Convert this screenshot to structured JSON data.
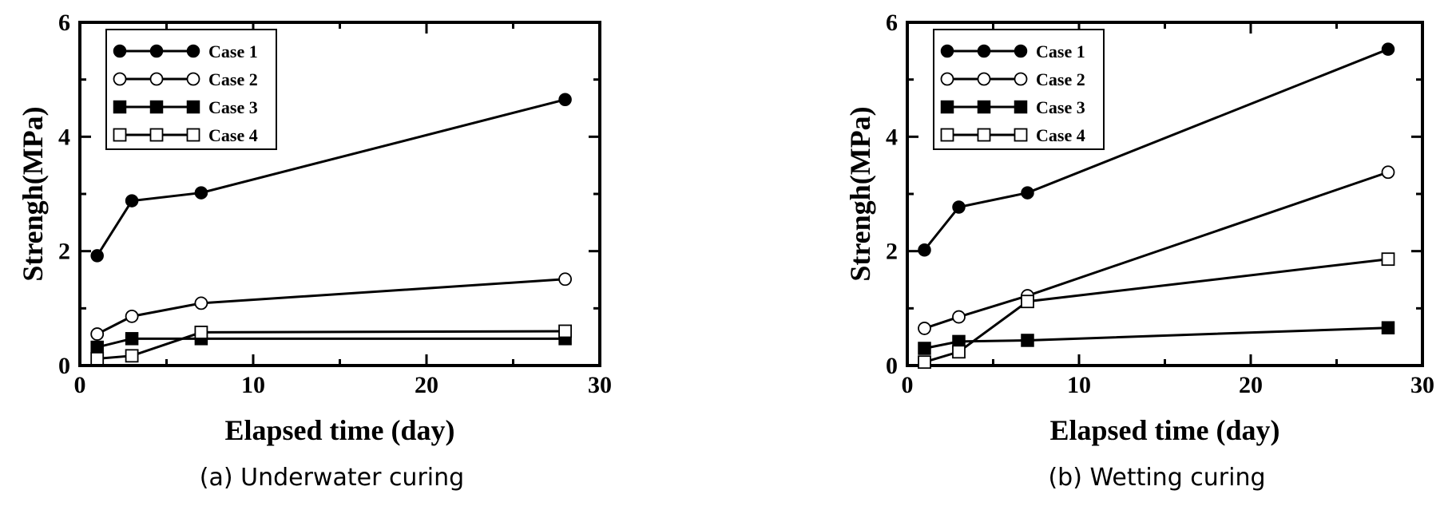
{
  "chart_data": [
    {
      "type": "line",
      "caption": "(a) Underwater curing",
      "xlabel": "Elapsed time (day)",
      "ylabel": "Strengh(MPa)",
      "xlim": [
        0,
        30
      ],
      "ylim": [
        0,
        6
      ],
      "xticks": [
        0,
        10,
        20,
        30
      ],
      "yticks": [
        0,
        2,
        4,
        6
      ],
      "x": [
        1,
        3,
        7,
        28
      ],
      "legend_position": "top-left",
      "series": [
        {
          "name": "Case 1",
          "marker": "filled-circle",
          "values": [
            1.92,
            2.88,
            3.02,
            4.65
          ]
        },
        {
          "name": "Case 2",
          "marker": "open-circle",
          "values": [
            0.55,
            0.86,
            1.09,
            1.51
          ]
        },
        {
          "name": "Case 3",
          "marker": "filled-square",
          "values": [
            0.32,
            0.47,
            0.47,
            0.47
          ]
        },
        {
          "name": "Case 4",
          "marker": "open-square",
          "values": [
            0.12,
            0.17,
            0.58,
            0.6
          ]
        }
      ]
    },
    {
      "type": "line",
      "caption": "(b) Wetting curing",
      "xlabel": "Elapsed time (day)",
      "ylabel": "Strengh(MPa)",
      "xlim": [
        0,
        30
      ],
      "ylim": [
        0,
        6
      ],
      "xticks": [
        0,
        10,
        20,
        30
      ],
      "yticks": [
        0,
        2,
        4,
        6
      ],
      "x": [
        1,
        3,
        7,
        28
      ],
      "legend_position": "top-left",
      "series": [
        {
          "name": "Case 1",
          "marker": "filled-circle",
          "values": [
            2.02,
            2.77,
            3.02,
            5.53
          ]
        },
        {
          "name": "Case 2",
          "marker": "open-circle",
          "values": [
            0.65,
            0.85,
            1.22,
            3.38
          ]
        },
        {
          "name": "Case 3",
          "marker": "filled-square",
          "values": [
            0.3,
            0.42,
            0.44,
            0.66
          ]
        },
        {
          "name": "Case 4",
          "marker": "open-square",
          "values": [
            0.06,
            0.24,
            1.12,
            1.86
          ]
        }
      ]
    }
  ]
}
